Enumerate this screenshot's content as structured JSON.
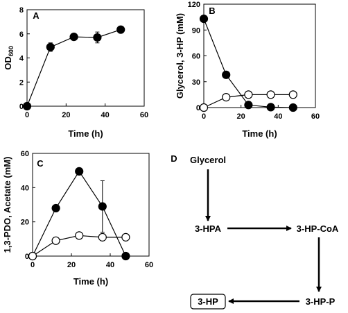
{
  "chart_data": [
    {
      "panel": "A",
      "type": "line",
      "xlabel": "Time (h)",
      "ylabel": "OD",
      "ylabel_sub": "600",
      "xlim": [
        0,
        60
      ],
      "ylim": [
        0,
        8
      ],
      "xticks": [
        "0",
        "20",
        "40",
        "60"
      ],
      "yticks": [
        "0",
        "2",
        "4",
        "6",
        "8"
      ],
      "series": [
        {
          "marker": "filled",
          "x": [
            0,
            12,
            24,
            36,
            48
          ],
          "y": [
            0,
            4.9,
            5.75,
            5.7,
            6.35
          ],
          "err": [
            0,
            0.35,
            0,
            0.45,
            0
          ]
        }
      ]
    },
    {
      "panel": "B",
      "type": "line",
      "xlabel": "Time (h)",
      "ylabel": "Glycerol, 3-HP (mM)",
      "xlim": [
        0,
        60
      ],
      "ylim": [
        0,
        120
      ],
      "xticks": [
        "0",
        "20",
        "40",
        "60"
      ],
      "yticks": [
        "0",
        "30",
        "60",
        "90",
        "120"
      ],
      "series": [
        {
          "marker": "filled",
          "x": [
            0,
            12,
            24,
            36,
            48
          ],
          "y": [
            103,
            38,
            3,
            0.5,
            0
          ],
          "err": [
            0,
            0,
            0,
            0,
            0
          ]
        },
        {
          "marker": "open",
          "x": [
            0,
            12,
            24,
            36,
            48
          ],
          "y": [
            0,
            12,
            15,
            15,
            15
          ],
          "err": [
            0,
            0,
            0,
            0,
            0
          ]
        }
      ]
    },
    {
      "panel": "C",
      "type": "line",
      "xlabel": "Time (h)",
      "ylabel": "1,3-PDO, Acetate (mM)",
      "xlim": [
        0,
        60
      ],
      "ylim": [
        0,
        60
      ],
      "xticks": [
        "0",
        "20",
        "40",
        "60"
      ],
      "yticks": [
        "0",
        "20",
        "40",
        "60"
      ],
      "series": [
        {
          "marker": "filled",
          "x": [
            0,
            12,
            24,
            36,
            48
          ],
          "y": [
            0,
            28,
            49.5,
            29,
            0
          ],
          "err": [
            0,
            0,
            2,
            15,
            0
          ]
        },
        {
          "marker": "open",
          "x": [
            0,
            12,
            24,
            36,
            48
          ],
          "y": [
            0,
            9,
            12,
            11,
            11
          ],
          "err": [
            0,
            0,
            0,
            0,
            0
          ]
        }
      ]
    }
  ],
  "pathway": {
    "label": "D",
    "nodes": {
      "glycerol": "Glycerol",
      "hpa": "3-HPA",
      "hpcoa": "3-HP-CoA",
      "hpp": "3-HP-P",
      "hp": "3-HP"
    }
  }
}
